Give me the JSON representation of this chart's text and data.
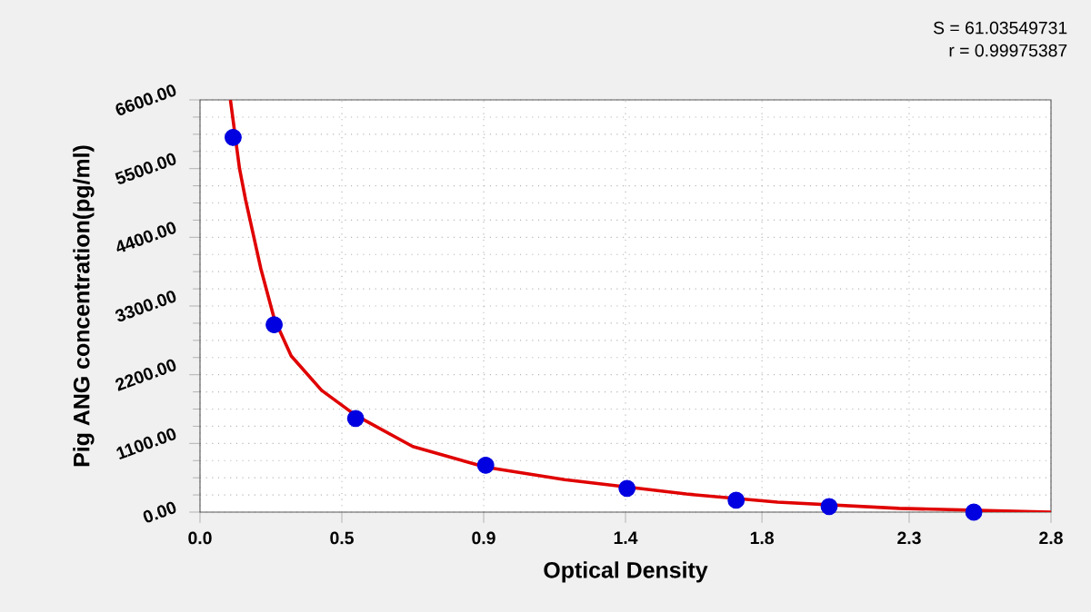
{
  "chart_data": {
    "type": "scatter",
    "xlabel": "Optical Density",
    "ylabel": "Pig ANG concentration(pg/ml)",
    "annotations": [
      "S = 61.03549731",
      "r = 0.99975387"
    ],
    "xlim": [
      0,
      2.8
    ],
    "ylim": [
      0,
      6600
    ],
    "xticks": [
      {
        "value": 0,
        "label": "0.0"
      },
      {
        "value": 0.4667,
        "label": "0.5"
      },
      {
        "value": 0.9333,
        "label": "0.9"
      },
      {
        "value": 1.4,
        "label": "1.4"
      },
      {
        "value": 1.849,
        "label": "1.8"
      },
      {
        "value": 2.3333,
        "label": "2.3"
      },
      {
        "value": 2.8,
        "label": "2.8"
      }
    ],
    "yticks": [
      {
        "value": 0,
        "label": "0.00"
      },
      {
        "value": 1100,
        "label": "1100.00"
      },
      {
        "value": 2200,
        "label": "2200.00"
      },
      {
        "value": 3300,
        "label": "3300.00"
      },
      {
        "value": 4400,
        "label": "4400.00"
      },
      {
        "value": 5500,
        "label": "5500.00"
      },
      {
        "value": 6600,
        "label": "6600.00"
      }
    ],
    "grid": true,
    "series": [
      {
        "color": "#0000e0",
        "marker": "circle",
        "x": [
          0.109,
          0.244,
          0.512,
          0.94,
          1.405,
          1.764,
          2.07,
          2.546
        ],
        "values": [
          6000,
          3000,
          1500,
          750,
          380,
          190,
          90,
          0
        ]
      },
      {
        "type": "line",
        "color": "#e00000",
        "marker": "none",
        "x": [
          0.1,
          0.13,
          0.15,
          0.2,
          0.244,
          0.3,
          0.4,
          0.512,
          0.7,
          0.94,
          1.2,
          1.6,
          1.9,
          2.3,
          2.8
        ],
        "values": [
          6600,
          5500,
          5000,
          3900,
          3100,
          2500,
          1950,
          1550,
          1050,
          720,
          520,
          290,
          160,
          60,
          0
        ]
      }
    ]
  }
}
